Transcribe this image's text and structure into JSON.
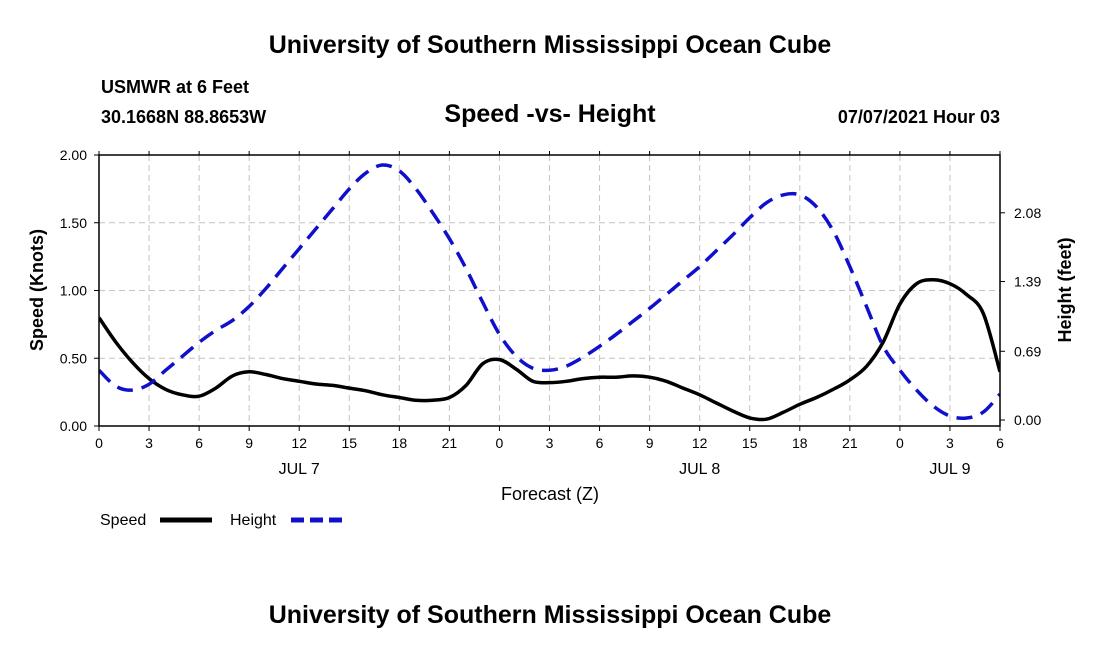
{
  "page": {
    "title_top": "University of Southern Mississippi Ocean Cube",
    "title_bottom": "University of Southern Mississippi Ocean Cube",
    "station": "USMWR at 6 Feet",
    "coords": "30.1668N  88.8653W",
    "datetime": "07/07/2021 Hour 03"
  },
  "chart_data": {
    "type": "line",
    "title": "Speed -vs- Height",
    "xlabel": "Forecast (Z)",
    "ylabel_left": "Speed (Knots)",
    "ylabel_right": "Height (feet)",
    "x_range": [
      0,
      54
    ],
    "y_left_range": [
      0,
      2.0
    ],
    "y_right_range": [
      -0.06,
      2.66
    ],
    "x_tick_values": [
      0,
      3,
      6,
      9,
      12,
      15,
      18,
      21,
      24,
      27,
      30,
      33,
      36,
      39,
      42,
      45,
      48,
      51,
      54
    ],
    "x_tick_labels": [
      "0",
      "3",
      "6",
      "9",
      "12",
      "15",
      "18",
      "21",
      "0",
      "3",
      "6",
      "9",
      "12",
      "15",
      "18",
      "21",
      "0",
      "3",
      "6"
    ],
    "day_labels": [
      {
        "label": "JUL 7",
        "x": 12
      },
      {
        "label": "JUL 8",
        "x": 36
      },
      {
        "label": "JUL 9",
        "x": 51
      }
    ],
    "y_left_ticks": [
      0,
      0.5,
      1.0,
      1.5,
      2.0
    ],
    "y_left_tick_labels": [
      "0.00",
      "0.50",
      "1.00",
      "1.50",
      "2.00"
    ],
    "y_right_ticks": [
      0.0,
      0.69,
      1.39,
      2.08
    ],
    "y_right_tick_labels": [
      "0.00",
      "0.69",
      "1.39",
      "2.08"
    ],
    "grid": true,
    "legend": [
      {
        "label": "Speed",
        "color": "#000000",
        "style": "solid"
      },
      {
        "label": "Height",
        "color": "#1010cc",
        "style": "dashed"
      }
    ],
    "series": [
      {
        "name": "Speed",
        "axis": "left",
        "color": "#000000",
        "x": [
          0,
          1,
          2,
          3,
          4,
          5,
          6,
          7,
          8,
          9,
          10,
          11,
          12,
          13,
          14,
          15,
          16,
          17,
          18,
          19,
          20,
          21,
          22,
          23,
          24,
          25,
          26,
          27,
          28,
          29,
          30,
          31,
          32,
          33,
          34,
          35,
          36,
          37,
          38,
          39,
          40,
          41,
          42,
          43,
          44,
          45,
          46,
          47,
          48,
          49,
          50,
          51,
          52,
          53,
          54
        ],
        "values": [
          0.8,
          0.62,
          0.47,
          0.35,
          0.27,
          0.23,
          0.22,
          0.28,
          0.37,
          0.4,
          0.38,
          0.35,
          0.33,
          0.31,
          0.3,
          0.28,
          0.26,
          0.23,
          0.21,
          0.19,
          0.19,
          0.21,
          0.3,
          0.46,
          0.49,
          0.42,
          0.33,
          0.32,
          0.33,
          0.35,
          0.36,
          0.36,
          0.37,
          0.36,
          0.33,
          0.28,
          0.23,
          0.17,
          0.11,
          0.06,
          0.05,
          0.1,
          0.16,
          0.21,
          0.27,
          0.34,
          0.44,
          0.62,
          0.9,
          1.05,
          1.08,
          1.05,
          0.97,
          0.83,
          0.4
        ]
      },
      {
        "name": "Height",
        "axis": "right",
        "color": "#1010cc",
        "x": [
          0,
          1,
          2,
          3,
          4,
          5,
          6,
          7,
          8,
          9,
          10,
          11,
          12,
          13,
          14,
          15,
          16,
          17,
          18,
          19,
          20,
          21,
          22,
          23,
          24,
          25,
          26,
          27,
          28,
          29,
          30,
          31,
          32,
          33,
          34,
          35,
          36,
          37,
          38,
          39,
          40,
          41,
          42,
          43,
          44,
          45,
          46,
          47,
          48,
          49,
          50,
          51,
          52,
          53,
          54
        ],
        "values": [
          0.5,
          0.34,
          0.3,
          0.36,
          0.5,
          0.64,
          0.78,
          0.9,
          1.0,
          1.14,
          1.32,
          1.52,
          1.72,
          1.92,
          2.12,
          2.32,
          2.48,
          2.56,
          2.5,
          2.32,
          2.08,
          1.82,
          1.52,
          1.18,
          0.86,
          0.64,
          0.52,
          0.5,
          0.54,
          0.63,
          0.74,
          0.86,
          0.99,
          1.12,
          1.26,
          1.4,
          1.54,
          1.7,
          1.86,
          2.03,
          2.18,
          2.26,
          2.26,
          2.14,
          1.9,
          1.54,
          1.14,
          0.74,
          0.5,
          0.3,
          0.14,
          0.04,
          0.02,
          0.08,
          0.26
        ]
      }
    ]
  }
}
